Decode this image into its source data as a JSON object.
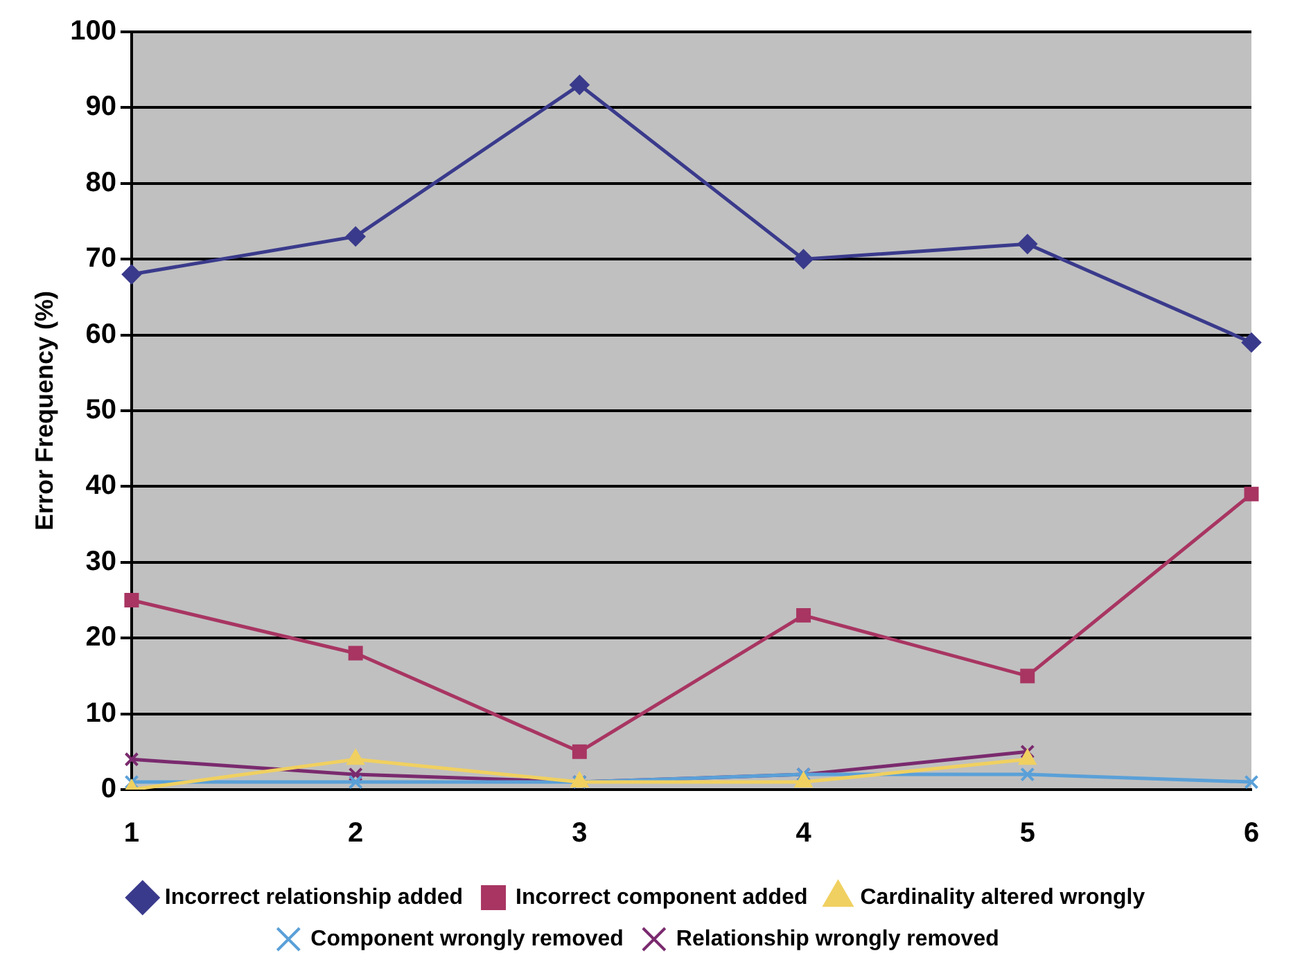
{
  "chart_data": {
    "type": "line",
    "ylabel": "Error Frequency (%)",
    "categories": [
      "1",
      "2",
      "3",
      "4",
      "5",
      "6"
    ],
    "ylim": [
      0,
      100
    ],
    "yticks": [
      0,
      10,
      20,
      30,
      40,
      50,
      60,
      70,
      80,
      90,
      100
    ],
    "grid": "y",
    "legend": "bottom",
    "series": [
      {
        "name": "Incorrect relationship added",
        "color": "#3a3a8c",
        "marker": "diamond",
        "values": [
          68,
          73,
          93,
          70,
          72,
          59
        ]
      },
      {
        "name": "Incorrect component added",
        "color": "#a83562",
        "marker": "square",
        "values": [
          25,
          18,
          5,
          23,
          15,
          39
        ]
      },
      {
        "name": "Cardinality altered wrongly",
        "color": "#f0d060",
        "marker": "triangle",
        "values": [
          0,
          4,
          1,
          1,
          4,
          null
        ]
      },
      {
        "name": "Component wrongly removed",
        "color": "#5aa0d8",
        "marker": "cross",
        "values": [
          1,
          1,
          1,
          2,
          2,
          1
        ]
      },
      {
        "name": "Relationship wrongly removed",
        "color": "#7a2a6e",
        "marker": "cross",
        "values": [
          4,
          2,
          1,
          2,
          5,
          null
        ]
      }
    ]
  }
}
